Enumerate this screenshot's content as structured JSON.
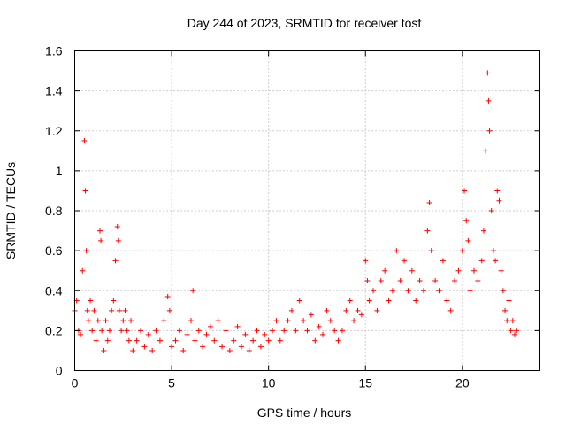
{
  "chart_data": {
    "type": "scatter",
    "title": "Day 244 of 2023, SRMTID for receiver tosf",
    "xlabel": "GPS time / hours",
    "ylabel": "SRMTID / TECUs",
    "xlim": [
      0,
      24
    ],
    "ylim": [
      0,
      1.6
    ],
    "xticks": [
      0,
      5,
      10,
      15,
      20
    ],
    "xtick_labels": [
      "0",
      "5",
      "10",
      "15",
      "20"
    ],
    "yticks": [
      0,
      0.2,
      0.4,
      0.6,
      0.8,
      1.0,
      1.2,
      1.4,
      1.6
    ],
    "ytick_labels": [
      "0",
      "0.2",
      "0.4",
      "0.6",
      "0.8",
      "1",
      "1.2",
      "1.4",
      "1.6"
    ],
    "grid": true,
    "marker": "plus",
    "color": "#ff0000",
    "series": [
      {
        "name": "SRMTID",
        "x": [
          0.0,
          0.1,
          0.2,
          0.3,
          0.4,
          0.5,
          0.55,
          0.6,
          0.65,
          0.7,
          0.8,
          0.9,
          1.0,
          1.1,
          1.2,
          1.3,
          1.35,
          1.4,
          1.5,
          1.6,
          1.7,
          1.8,
          1.9,
          2.0,
          2.1,
          2.2,
          2.25,
          2.3,
          2.4,
          2.5,
          2.6,
          2.7,
          2.8,
          2.9,
          3.0,
          3.2,
          3.4,
          3.6,
          3.8,
          4.0,
          4.2,
          4.4,
          4.6,
          4.8,
          4.9,
          5.0,
          5.2,
          5.4,
          5.6,
          5.8,
          6.0,
          6.1,
          6.2,
          6.4,
          6.6,
          6.8,
          7.0,
          7.2,
          7.4,
          7.6,
          7.8,
          8.0,
          8.2,
          8.4,
          8.6,
          8.8,
          9.0,
          9.2,
          9.4,
          9.6,
          9.8,
          10.0,
          10.2,
          10.4,
          10.6,
          10.8,
          11.0,
          11.2,
          11.4,
          11.6,
          11.8,
          12.0,
          12.2,
          12.4,
          12.6,
          12.8,
          13.0,
          13.2,
          13.4,
          13.6,
          13.8,
          14.0,
          14.2,
          14.4,
          14.6,
          14.8,
          15.0,
          15.1,
          15.2,
          15.4,
          15.6,
          15.8,
          16.0,
          16.2,
          16.4,
          16.6,
          16.8,
          17.0,
          17.2,
          17.4,
          17.6,
          17.8,
          18.0,
          18.2,
          18.3,
          18.4,
          18.6,
          18.8,
          19.0,
          19.2,
          19.4,
          19.6,
          19.8,
          20.0,
          20.1,
          20.2,
          20.3,
          20.4,
          20.6,
          20.8,
          21.0,
          21.1,
          21.2,
          21.3,
          21.35,
          21.4,
          21.5,
          21.6,
          21.7,
          21.8,
          21.9,
          22.0,
          22.1,
          22.2,
          22.3,
          22.4,
          22.5,
          22.6,
          22.7,
          22.8
        ],
        "values": [
          0.3,
          0.35,
          0.2,
          0.18,
          0.5,
          1.15,
          0.9,
          0.6,
          0.3,
          0.25,
          0.35,
          0.2,
          0.3,
          0.15,
          0.25,
          0.7,
          0.65,
          0.2,
          0.1,
          0.25,
          0.15,
          0.2,
          0.3,
          0.35,
          0.55,
          0.72,
          0.65,
          0.3,
          0.2,
          0.25,
          0.3,
          0.2,
          0.15,
          0.25,
          0.1,
          0.15,
          0.2,
          0.12,
          0.18,
          0.1,
          0.2,
          0.15,
          0.25,
          0.37,
          0.3,
          0.12,
          0.15,
          0.2,
          0.1,
          0.18,
          0.25,
          0.4,
          0.15,
          0.2,
          0.12,
          0.18,
          0.22,
          0.15,
          0.25,
          0.12,
          0.2,
          0.1,
          0.15,
          0.22,
          0.12,
          0.18,
          0.1,
          0.15,
          0.2,
          0.12,
          0.18,
          0.15,
          0.2,
          0.25,
          0.15,
          0.2,
          0.25,
          0.3,
          0.2,
          0.35,
          0.25,
          0.2,
          0.28,
          0.15,
          0.22,
          0.18,
          0.3,
          0.25,
          0.2,
          0.15,
          0.2,
          0.3,
          0.35,
          0.25,
          0.3,
          0.28,
          0.55,
          0.45,
          0.35,
          0.4,
          0.3,
          0.45,
          0.5,
          0.35,
          0.4,
          0.6,
          0.45,
          0.55,
          0.4,
          0.5,
          0.35,
          0.45,
          0.4,
          0.7,
          0.84,
          0.6,
          0.45,
          0.4,
          0.55,
          0.35,
          0.3,
          0.45,
          0.5,
          0.6,
          0.9,
          0.75,
          0.65,
          0.4,
          0.5,
          0.45,
          0.55,
          0.7,
          1.1,
          1.49,
          1.35,
          1.2,
          0.8,
          0.6,
          0.55,
          0.9,
          0.85,
          0.5,
          0.4,
          0.3,
          0.25,
          0.35,
          0.2,
          0.25,
          0.18,
          0.2
        ]
      }
    ]
  }
}
